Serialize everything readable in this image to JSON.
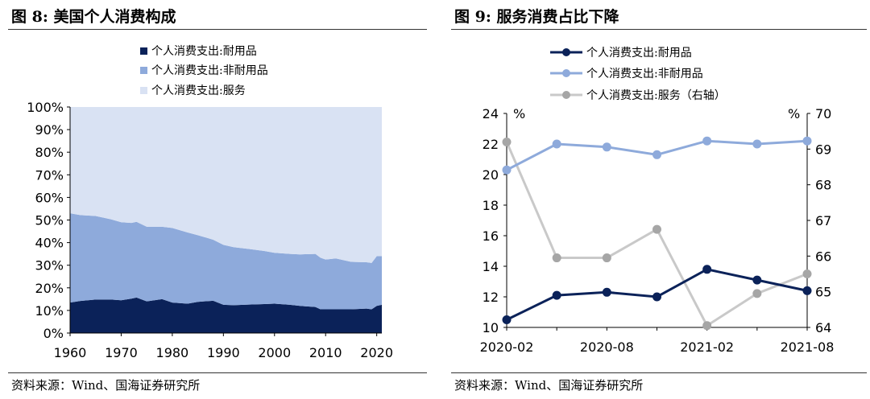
{
  "left": {
    "title": "图 8:  美国个人消费构成",
    "source": "资料来源：Wind、国海证券研究所",
    "chart_data": {
      "type": "area",
      "stacked": true,
      "percent": true,
      "x": [
        1960,
        1962,
        1965,
        1968,
        1970,
        1972,
        1973,
        1975,
        1978,
        1980,
        1983,
        1985,
        1988,
        1990,
        1992,
        1995,
        1998,
        2000,
        2003,
        2005,
        2008,
        2009,
        2010,
        2012,
        2015,
        2018,
        2019,
        2020,
        2021
      ],
      "series": [
        {
          "name": "个人消费支出:耐用品",
          "color": "#0b2259",
          "values": [
            13.5,
            14.2,
            14.8,
            14.8,
            14.5,
            15.2,
            15.7,
            14.0,
            15.0,
            13.5,
            13.0,
            13.8,
            14.3,
            12.5,
            12.3,
            12.6,
            12.8,
            13.0,
            12.5,
            12.0,
            11.5,
            10.5,
            10.5,
            10.5,
            10.5,
            10.8,
            10.5,
            12.0,
            12.5
          ]
        },
        {
          "name": "个人消费支出:非耐用品",
          "color": "#8eaadb",
          "values": [
            39.5,
            38.0,
            37.0,
            35.5,
            34.5,
            33.5,
            33.5,
            33.0,
            32.0,
            33.0,
            31.5,
            29.5,
            27.0,
            26.5,
            25.7,
            24.6,
            23.5,
            22.5,
            22.5,
            22.8,
            23.5,
            22.8,
            22.0,
            22.5,
            21.0,
            20.5,
            20.5,
            22.0,
            21.5
          ]
        },
        {
          "name": "个人消费支出:服务",
          "color": "#d9e2f3",
          "values": [
            47.0,
            47.8,
            48.2,
            49.7,
            51.0,
            51.3,
            50.8,
            53.0,
            53.0,
            53.5,
            55.5,
            56.7,
            58.7,
            61.0,
            62.0,
            62.8,
            63.7,
            64.5,
            65.0,
            65.2,
            65.0,
            66.7,
            67.5,
            67.0,
            68.5,
            68.7,
            69.0,
            66.0,
            66.0
          ]
        }
      ],
      "y_ticks": [
        "0%",
        "10%",
        "20%",
        "30%",
        "40%",
        "50%",
        "60%",
        "70%",
        "80%",
        "90%",
        "100%"
      ],
      "x_ticks": [
        "1960",
        "1970",
        "1980",
        "1990",
        "2000",
        "2010",
        "2020"
      ],
      "xlim": [
        1960,
        2021
      ],
      "ylim": [
        0,
        100
      ],
      "legend_position": "top"
    }
  },
  "right": {
    "title": "图 9:  服务消费占比下降",
    "source": "资料来源：Wind、国海证券研究所",
    "chart_data": {
      "type": "line",
      "categories": [
        "2020-02",
        "2020-05",
        "2020-08",
        "2020-11",
        "2021-02",
        "2021-05",
        "2021-08"
      ],
      "x_ticks": [
        "2020-02",
        "2020-08",
        "2021-02",
        "2021-08"
      ],
      "series": [
        {
          "name": "个人消费支出:耐用品",
          "axis": "left",
          "color": "#0b2259",
          "values": [
            10.5,
            12.1,
            12.3,
            12.0,
            13.8,
            13.1,
            12.4
          ]
        },
        {
          "name": "个人消费支出:非耐用品",
          "axis": "left",
          "color": "#8eaadb",
          "values": [
            20.3,
            22.0,
            21.8,
            21.3,
            22.2,
            22.0,
            22.2
          ]
        },
        {
          "name": "个人消费支出:服务（右轴）",
          "axis": "right",
          "color": "#c9c9c9",
          "marker_color": "#a6a6a6",
          "values": [
            69.2,
            65.95,
            65.95,
            66.75,
            64.05,
            64.95,
            65.5
          ]
        }
      ],
      "y_left_ticks": [
        "10",
        "12",
        "14",
        "16",
        "18",
        "20",
        "22",
        "24"
      ],
      "y_right_ticks": [
        "64",
        "65",
        "66",
        "67",
        "68",
        "69",
        "70"
      ],
      "ylim_left": [
        10,
        24
      ],
      "ylim_right": [
        64,
        70
      ],
      "y_left_unit": "%",
      "y_right_unit": "%",
      "legend_position": "top"
    }
  }
}
